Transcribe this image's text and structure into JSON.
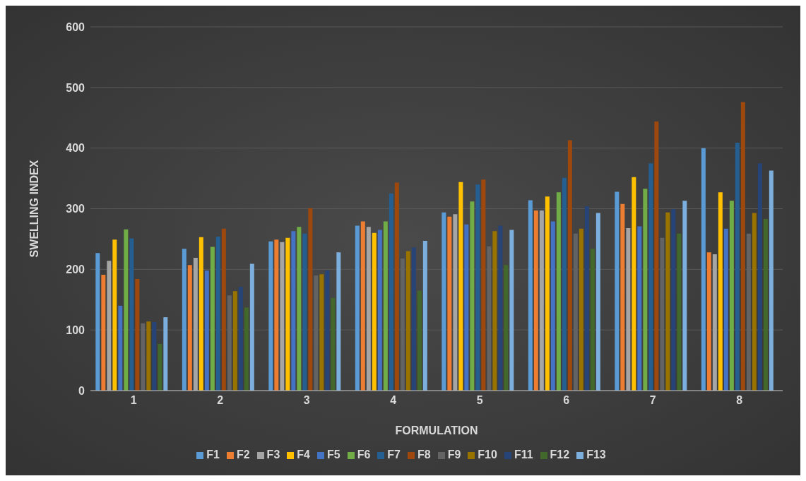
{
  "chart_data": {
    "type": "bar",
    "xlabel": "FORMULATION",
    "ylabel": "SWELLING INDEX",
    "categories": [
      "1",
      "2",
      "3",
      "4",
      "5",
      "6",
      "7",
      "8"
    ],
    "ylim": [
      0,
      600
    ],
    "yticks": [
      0,
      100,
      200,
      300,
      400,
      500,
      600
    ],
    "grid": "y",
    "legend": "bottom",
    "series": [
      {
        "name": "F1",
        "color": "#5b9bd5",
        "values": [
          227,
          234,
          246,
          272,
          294,
          314,
          328,
          400
        ]
      },
      {
        "name": "F2",
        "color": "#ed7d31",
        "values": [
          191,
          207,
          249,
          279,
          287,
          297,
          308,
          228
        ]
      },
      {
        "name": "F3",
        "color": "#a5a5a5",
        "values": [
          214,
          219,
          245,
          270,
          291,
          297,
          268,
          225
        ]
      },
      {
        "name": "F4",
        "color": "#ffc000",
        "values": [
          249,
          253,
          252,
          260,
          344,
          320,
          352,
          327
        ]
      },
      {
        "name": "F5",
        "color": "#4472c4",
        "values": [
          140,
          198,
          263,
          265,
          274,
          279,
          271,
          267
        ]
      },
      {
        "name": "F6",
        "color": "#70ad47",
        "values": [
          266,
          237,
          270,
          279,
          312,
          327,
          333,
          313
        ]
      },
      {
        "name": "F7",
        "color": "#255e91",
        "values": [
          251,
          254,
          259,
          325,
          340,
          351,
          375,
          409
        ]
      },
      {
        "name": "F8",
        "color": "#9e480e",
        "values": [
          184,
          267,
          301,
          343,
          348,
          413,
          444,
          476
        ]
      },
      {
        "name": "F9",
        "color": "#636363",
        "values": [
          111,
          157,
          190,
          218,
          238,
          259,
          252,
          259
        ]
      },
      {
        "name": "F10",
        "color": "#997300",
        "values": [
          114,
          164,
          192,
          230,
          263,
          267,
          294,
          293
        ]
      },
      {
        "name": "F11",
        "color": "#264478",
        "values": [
          113,
          171,
          198,
          236,
          272,
          304,
          299,
          375
        ]
      },
      {
        "name": "F12",
        "color": "#43682b",
        "values": [
          77,
          137,
          153,
          165,
          207,
          234,
          259,
          283
        ]
      },
      {
        "name": "F13",
        "color": "#7cafdd",
        "values": [
          121,
          209,
          228,
          247,
          265,
          293,
          313,
          363
        ]
      }
    ]
  }
}
